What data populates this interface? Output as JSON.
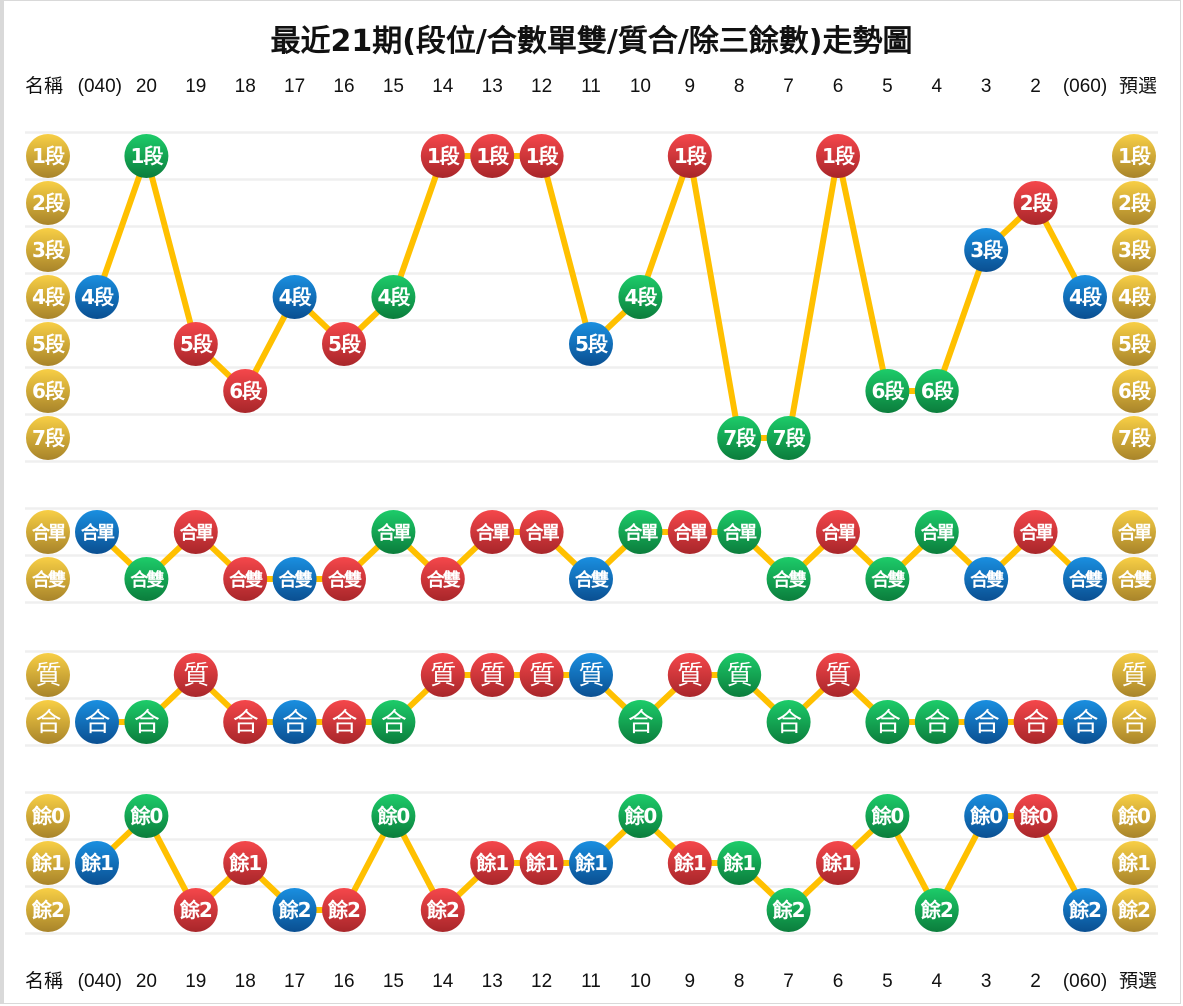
{
  "title": "最近21期(段位/合數單雙/質合/除三餘數)走勢圖",
  "header": {
    "name_label": "名稱",
    "columns": [
      "(040)",
      "20",
      "19",
      "18",
      "17",
      "16",
      "15",
      "14",
      "13",
      "12",
      "11",
      "10",
      "9",
      "8",
      "7",
      "6",
      "5",
      "4",
      "3",
      "2",
      "(060)"
    ],
    "preselect_label": "預選"
  },
  "colors": {
    "b": "#0a6fc2",
    "g": "#10a855",
    "r": "#e03a3e",
    "gold": "#e0b43a",
    "line": "#ffc000",
    "grid": "#efefef"
  },
  "chart_data": {
    "type": "trend",
    "sections": [
      {
        "rows": [
          "1段",
          "2段",
          "3段",
          "4段",
          "5段",
          "6段",
          "7段"
        ],
        "values": [
          4,
          1,
          5,
          6,
          4,
          5,
          4,
          1,
          1,
          1,
          5,
          4,
          1,
          7,
          7,
          1,
          6,
          6,
          3,
          2,
          4
        ],
        "colors": [
          "b",
          "g",
          "r",
          "r",
          "b",
          "r",
          "g",
          "r",
          "r",
          "r",
          "b",
          "g",
          "r",
          "g",
          "g",
          "r",
          "g",
          "g",
          "b",
          "r",
          "b"
        ]
      },
      {
        "rows": [
          "合單",
          "合雙"
        ],
        "values": [
          1,
          2,
          1,
          2,
          2,
          2,
          1,
          2,
          1,
          1,
          2,
          1,
          1,
          1,
          2,
          1,
          2,
          1,
          2,
          1,
          2
        ],
        "colors": [
          "b",
          "g",
          "r",
          "r",
          "b",
          "r",
          "g",
          "r",
          "r",
          "r",
          "b",
          "g",
          "r",
          "g",
          "g",
          "r",
          "g",
          "g",
          "b",
          "r",
          "b"
        ],
        "serif": false
      },
      {
        "rows": [
          "質",
          "合"
        ],
        "values": [
          2,
          2,
          1,
          2,
          2,
          2,
          2,
          1,
          1,
          1,
          1,
          2,
          1,
          1,
          2,
          1,
          2,
          2,
          2,
          2,
          2
        ],
        "colors": [
          "b",
          "g",
          "r",
          "r",
          "b",
          "r",
          "g",
          "r",
          "r",
          "r",
          "b",
          "g",
          "r",
          "g",
          "g",
          "r",
          "g",
          "g",
          "b",
          "r",
          "b"
        ],
        "serif": true
      },
      {
        "rows": [
          "餘0",
          "餘1",
          "餘2"
        ],
        "values": [
          2,
          1,
          3,
          2,
          3,
          3,
          1,
          3,
          2,
          2,
          2,
          1,
          2,
          2,
          3,
          2,
          1,
          3,
          1,
          1,
          3
        ],
        "colors": [
          "b",
          "g",
          "r",
          "r",
          "b",
          "r",
          "g",
          "r",
          "r",
          "r",
          "b",
          "g",
          "r",
          "g",
          "g",
          "r",
          "g",
          "g",
          "b",
          "r",
          "b"
        ]
      }
    ]
  }
}
